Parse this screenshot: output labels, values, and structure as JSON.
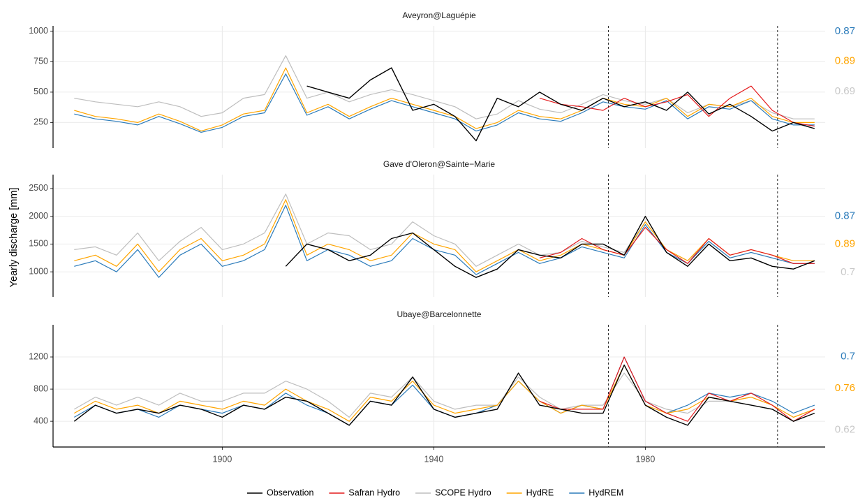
{
  "y_label": "Yearly discharge [mm]",
  "chart_data": [
    {
      "type": "line",
      "title": "Aveyron@Laguépie",
      "x": [
        1872,
        1876,
        1880,
        1884,
        1888,
        1892,
        1896,
        1900,
        1904,
        1908,
        1912,
        1916,
        1920,
        1924,
        1928,
        1932,
        1936,
        1940,
        1944,
        1948,
        1952,
        1956,
        1960,
        1964,
        1968,
        1972,
        1976,
        1980,
        1984,
        1988,
        1992,
        1996,
        2000,
        2004,
        2008,
        2012
      ],
      "xlim": [
        1868,
        2014
      ],
      "xticks": [
        1900,
        1940,
        1980
      ],
      "ylim": [
        40,
        1045
      ],
      "yticks": [
        250,
        500,
        750,
        1000
      ],
      "grid": true,
      "vlines": [
        1973,
        2005
      ],
      "series": [
        {
          "name": "Observation",
          "color": "#000000",
          "values": [
            null,
            null,
            null,
            null,
            null,
            null,
            null,
            null,
            null,
            null,
            null,
            550,
            500,
            450,
            600,
            700,
            350,
            400,
            300,
            100,
            450,
            380,
            500,
            400,
            350,
            450,
            380,
            420,
            350,
            500,
            320,
            400,
            300,
            180,
            250,
            200
          ]
        },
        {
          "name": "Safran Hydro",
          "color": "#e41a1c",
          "values": [
            null,
            null,
            null,
            null,
            null,
            null,
            null,
            null,
            null,
            null,
            null,
            null,
            null,
            null,
            null,
            null,
            null,
            null,
            null,
            null,
            null,
            null,
            450,
            400,
            380,
            350,
            450,
            380,
            420,
            480,
            300,
            450,
            550,
            350,
            250,
            220
          ]
        },
        {
          "name": "SCOPE Hydro",
          "color": "#bebebe",
          "values": [
            450,
            420,
            400,
            380,
            420,
            380,
            300,
            330,
            450,
            480,
            800,
            450,
            500,
            420,
            480,
            520,
            480,
            430,
            380,
            280,
            320,
            430,
            360,
            330,
            400,
            480,
            430,
            400,
            450,
            330,
            400,
            380,
            430,
            330,
            280,
            280
          ]
        },
        {
          "name": "HydRE",
          "color": "#ffa500",
          "values": [
            350,
            300,
            280,
            250,
            320,
            260,
            180,
            230,
            320,
            350,
            700,
            330,
            400,
            300,
            380,
            450,
            400,
            350,
            300,
            200,
            250,
            350,
            300,
            280,
            350,
            450,
            400,
            380,
            450,
            300,
            400,
            380,
            450,
            300,
            250,
            250
          ]
        },
        {
          "name": "HydREM",
          "color": "#2b7bba",
          "values": [
            320,
            280,
            260,
            230,
            300,
            240,
            170,
            210,
            300,
            330,
            650,
            310,
            380,
            280,
            360,
            430,
            380,
            330,
            280,
            180,
            230,
            330,
            280,
            260,
            330,
            420,
            380,
            360,
            430,
            280,
            380,
            360,
            430,
            280,
            230,
            230
          ]
        }
      ],
      "scores": [
        {
          "value": 0.87,
          "color": "#2b7bba"
        },
        {
          "value": 0.89,
          "color": "#ffa500"
        },
        {
          "value": 0.69,
          "color": "#c8c8c8"
        }
      ]
    },
    {
      "type": "line",
      "title": "Gave d'Oleron@Sainte−Marie",
      "x": [
        1872,
        1876,
        1880,
        1884,
        1888,
        1892,
        1896,
        1900,
        1904,
        1908,
        1912,
        1916,
        1920,
        1924,
        1928,
        1932,
        1936,
        1940,
        1944,
        1948,
        1952,
        1956,
        1960,
        1964,
        1968,
        1972,
        1976,
        1980,
        1984,
        1988,
        1992,
        1996,
        2000,
        2004,
        2008,
        2012
      ],
      "xlim": [
        1868,
        2014
      ],
      "xticks": [
        1900,
        1940,
        1980
      ],
      "ylim": [
        550,
        2750
      ],
      "yticks": [
        1000,
        1500,
        2000,
        2500
      ],
      "grid": true,
      "vlines": [
        1973,
        2005
      ],
      "series": [
        {
          "name": "Observation",
          "color": "#000000",
          "values": [
            null,
            null,
            null,
            null,
            null,
            null,
            null,
            null,
            null,
            null,
            1100,
            1500,
            1400,
            1200,
            1300,
            1600,
            1700,
            1400,
            1100,
            900,
            1050,
            1400,
            1300,
            1250,
            1500,
            1500,
            1300,
            2000,
            1350,
            1100,
            1500,
            1200,
            1250,
            1100,
            1050,
            1200
          ]
        },
        {
          "name": "Safran Hydro",
          "color": "#e41a1c",
          "values": [
            null,
            null,
            null,
            null,
            null,
            null,
            null,
            null,
            null,
            null,
            null,
            null,
            null,
            null,
            null,
            null,
            null,
            null,
            null,
            null,
            null,
            null,
            1250,
            1350,
            1600,
            1400,
            1300,
            1800,
            1400,
            1150,
            1600,
            1300,
            1400,
            1300,
            1150,
            1150
          ]
        },
        {
          "name": "SCOPE Hydro",
          "color": "#bebebe",
          "values": [
            1400,
            1450,
            1300,
            1700,
            1200,
            1550,
            1800,
            1400,
            1500,
            1700,
            2400,
            1500,
            1700,
            1650,
            1400,
            1500,
            1900,
            1650,
            1500,
            1100,
            1300,
            1500,
            1300,
            1350,
            1550,
            1450,
            1350,
            1900,
            1400,
            1200,
            1550,
            1250,
            1350,
            1250,
            1150,
            1150
          ]
        },
        {
          "name": "HydRE",
          "color": "#ffa500",
          "values": [
            1200,
            1300,
            1100,
            1500,
            1000,
            1400,
            1600,
            1200,
            1300,
            1500,
            2300,
            1300,
            1500,
            1400,
            1200,
            1300,
            1700,
            1500,
            1400,
            1000,
            1200,
            1400,
            1200,
            1300,
            1500,
            1400,
            1300,
            1900,
            1400,
            1200,
            1600,
            1300,
            1400,
            1300,
            1200,
            1200
          ]
        },
        {
          "name": "HydREM",
          "color": "#2b7bba",
          "values": [
            1100,
            1200,
            1000,
            1400,
            900,
            1300,
            1500,
            1100,
            1200,
            1400,
            2200,
            1200,
            1400,
            1300,
            1100,
            1200,
            1600,
            1400,
            1300,
            950,
            1150,
            1350,
            1150,
            1250,
            1450,
            1350,
            1250,
            1850,
            1350,
            1150,
            1550,
            1250,
            1350,
            1250,
            1150,
            1150
          ]
        }
      ],
      "scores": [
        {
          "value": 0.87,
          "color": "#2b7bba"
        },
        {
          "value": 0.89,
          "color": "#ffa500"
        },
        {
          "value": 0.7,
          "color": "#c8c8c8"
        }
      ]
    },
    {
      "type": "line",
      "title": "Ubaye@Barcelonnette",
      "x": [
        1872,
        1876,
        1880,
        1884,
        1888,
        1892,
        1896,
        1900,
        1904,
        1908,
        1912,
        1916,
        1920,
        1924,
        1928,
        1932,
        1936,
        1940,
        1944,
        1948,
        1952,
        1956,
        1960,
        1964,
        1968,
        1972,
        1976,
        1980,
        1984,
        1988,
        1992,
        1996,
        2000,
        2004,
        2008,
        2012
      ],
      "xlim": [
        1868,
        2014
      ],
      "xticks": [
        1900,
        1940,
        1980
      ],
      "ylim": [
        80,
        1600
      ],
      "yticks": [
        400,
        800,
        1200
      ],
      "grid": true,
      "vlines": [
        1973,
        2005
      ],
      "series": [
        {
          "name": "Observation",
          "color": "#000000",
          "values": [
            400,
            600,
            500,
            550,
            500,
            600,
            550,
            450,
            600,
            550,
            700,
            650,
            500,
            350,
            650,
            600,
            950,
            550,
            450,
            500,
            550,
            1000,
            600,
            550,
            500,
            500,
            1100,
            600,
            450,
            350,
            700,
            650,
            600,
            550,
            400,
            500
          ]
        },
        {
          "name": "Safran Hydro",
          "color": "#e41a1c",
          "values": [
            null,
            null,
            null,
            null,
            null,
            null,
            null,
            null,
            null,
            null,
            null,
            null,
            null,
            null,
            null,
            null,
            null,
            null,
            null,
            null,
            null,
            null,
            650,
            550,
            550,
            550,
            1200,
            650,
            500,
            400,
            750,
            650,
            750,
            600,
            400,
            550
          ]
        },
        {
          "name": "SCOPE Hydro",
          "color": "#bebebe",
          "values": [
            550,
            700,
            600,
            700,
            600,
            750,
            650,
            650,
            750,
            750,
            900,
            800,
            650,
            450,
            750,
            700,
            950,
            650,
            550,
            600,
            600,
            950,
            700,
            550,
            600,
            600,
            1000,
            650,
            550,
            500,
            650,
            650,
            700,
            600,
            450,
            550
          ]
        },
        {
          "name": "HydRE",
          "color": "#ffa500",
          "values": [
            500,
            650,
            550,
            600,
            500,
            650,
            600,
            550,
            650,
            600,
            800,
            650,
            550,
            400,
            700,
            650,
            900,
            600,
            500,
            550,
            600,
            900,
            650,
            500,
            600,
            550,
            1100,
            600,
            500,
            550,
            700,
            650,
            700,
            600,
            450,
            550
          ]
        },
        {
          "name": "HydREM",
          "color": "#2b7bba",
          "values": [
            450,
            600,
            500,
            550,
            450,
            600,
            550,
            500,
            600,
            550,
            750,
            600,
            500,
            350,
            650,
            600,
            850,
            550,
            450,
            500,
            600,
            900,
            650,
            500,
            600,
            550,
            1200,
            650,
            500,
            600,
            750,
            700,
            750,
            650,
            500,
            600
          ]
        }
      ],
      "scores": [
        {
          "value": 0.7,
          "color": "#2b7bba"
        },
        {
          "value": 0.76,
          "color": "#ffa500"
        },
        {
          "value": 0.62,
          "color": "#c8c8c8"
        }
      ]
    }
  ]
}
